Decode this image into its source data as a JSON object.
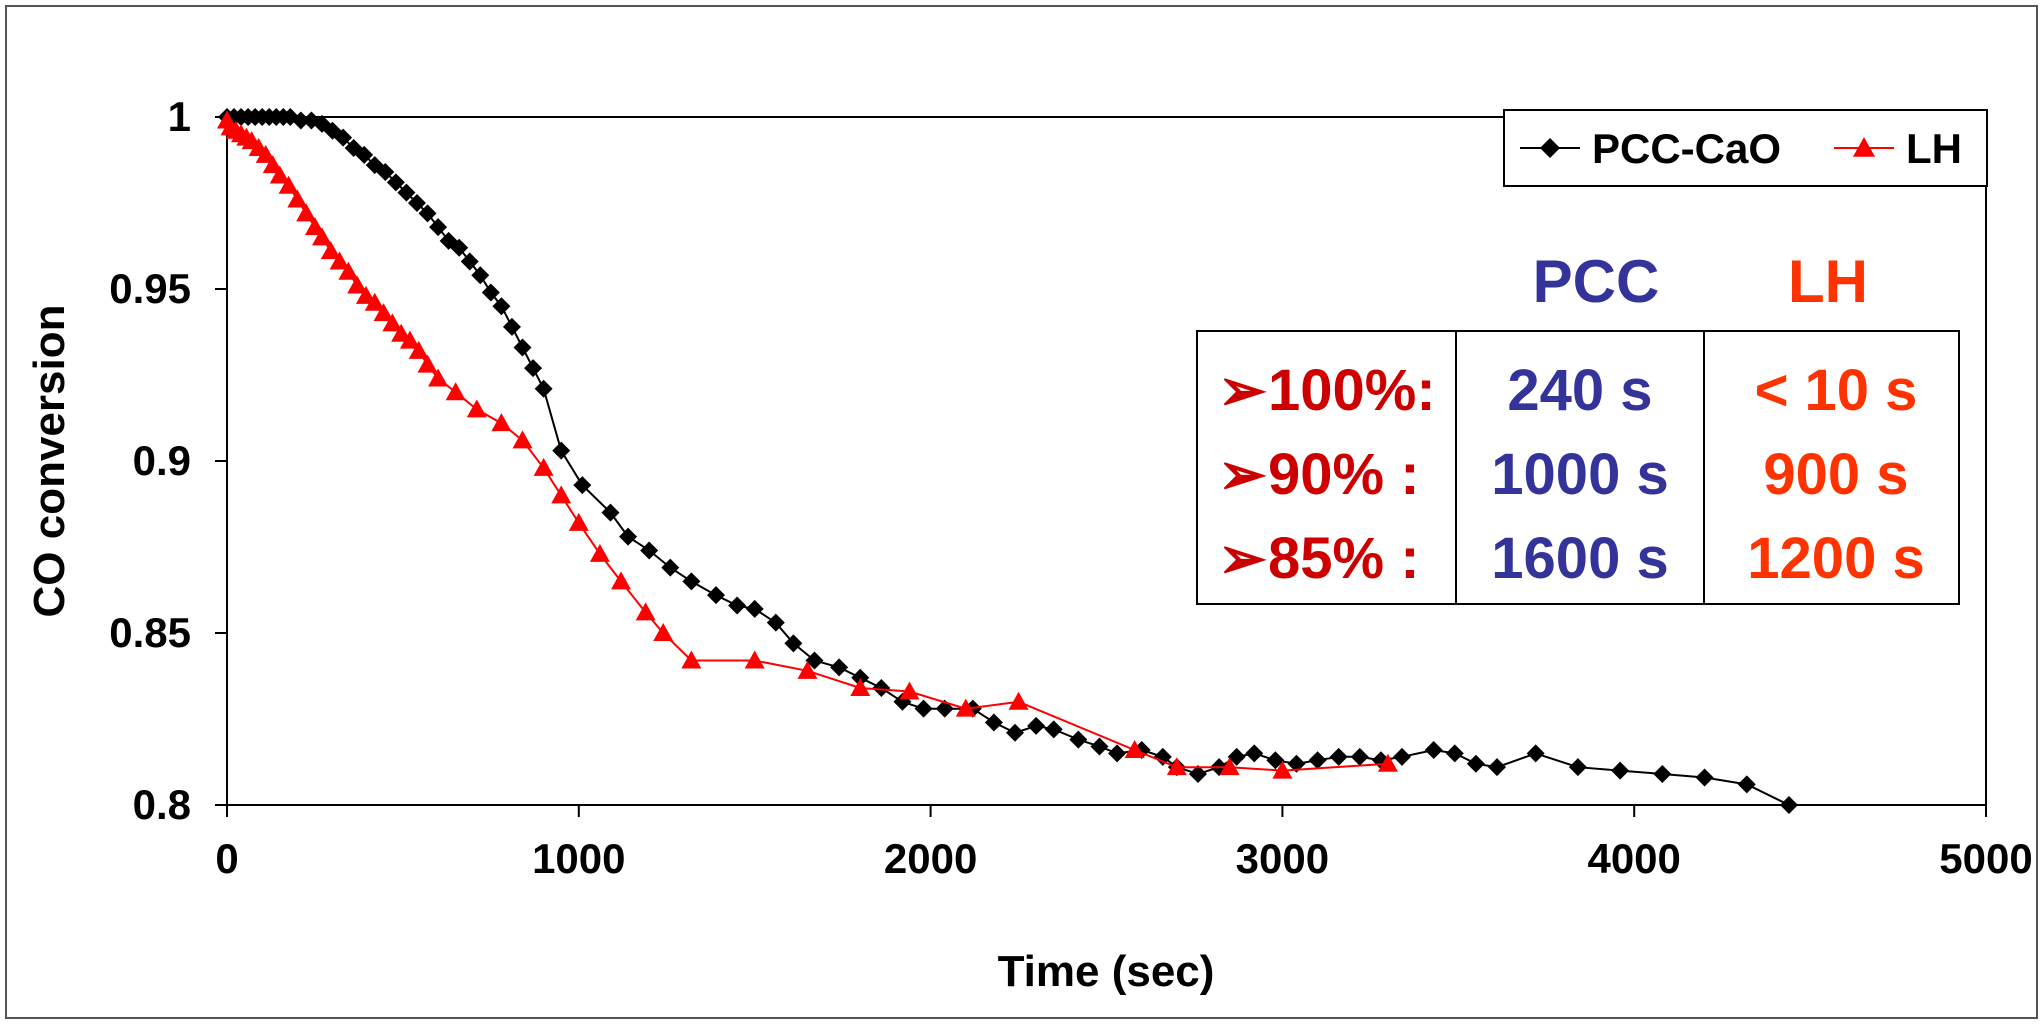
{
  "chart_data": {
    "type": "line",
    "title": "",
    "xlabel": "Time (sec)",
    "ylabel": "CO conversion",
    "xlim": [
      0,
      5000
    ],
    "ylim": [
      0.8,
      1.0
    ],
    "x_ticks": [
      "0",
      "1000",
      "2000",
      "3000",
      "4000",
      "5000"
    ],
    "x_tick_values": [
      0,
      1000,
      2000,
      3000,
      4000,
      5000
    ],
    "y_ticks": [
      "1",
      "0.95",
      "0.9",
      "0.85",
      "0.8"
    ],
    "y_tick_values": [
      1.0,
      0.95,
      0.9,
      0.85,
      0.8
    ],
    "grid": false,
    "legend": {
      "placement": "top-right",
      "entries": [
        "PCC-CaO",
        "LH"
      ]
    },
    "series": [
      {
        "name": "PCC-CaO",
        "color": "#000000",
        "marker": "diamond",
        "points": [
          [
            0,
            1.0
          ],
          [
            20,
            1.0
          ],
          [
            40,
            1.0
          ],
          [
            60,
            1.0
          ],
          [
            80,
            1.0
          ],
          [
            100,
            1.0
          ],
          [
            120,
            1.0
          ],
          [
            140,
            1.0
          ],
          [
            160,
            1.0
          ],
          [
            180,
            1.0
          ],
          [
            210,
            0.999
          ],
          [
            240,
            0.999
          ],
          [
            270,
            0.998
          ],
          [
            300,
            0.996
          ],
          [
            330,
            0.994
          ],
          [
            360,
            0.991
          ],
          [
            390,
            0.989
          ],
          [
            420,
            0.986
          ],
          [
            450,
            0.984
          ],
          [
            480,
            0.981
          ],
          [
            510,
            0.978
          ],
          [
            540,
            0.975
          ],
          [
            570,
            0.972
          ],
          [
            600,
            0.968
          ],
          [
            630,
            0.964
          ],
          [
            660,
            0.962
          ],
          [
            690,
            0.958
          ],
          [
            720,
            0.954
          ],
          [
            750,
            0.949
          ],
          [
            780,
            0.945
          ],
          [
            810,
            0.939
          ],
          [
            840,
            0.933
          ],
          [
            870,
            0.927
          ],
          [
            900,
            0.921
          ],
          [
            950,
            0.903
          ],
          [
            1010,
            0.893
          ],
          [
            1090,
            0.885
          ],
          [
            1140,
            0.878
          ],
          [
            1200,
            0.874
          ],
          [
            1260,
            0.869
          ],
          [
            1320,
            0.865
          ],
          [
            1390,
            0.861
          ],
          [
            1450,
            0.858
          ],
          [
            1500,
            0.857
          ],
          [
            1560,
            0.853
          ],
          [
            1610,
            0.847
          ],
          [
            1670,
            0.842
          ],
          [
            1740,
            0.84
          ],
          [
            1800,
            0.837
          ],
          [
            1860,
            0.834
          ],
          [
            1920,
            0.83
          ],
          [
            1980,
            0.828
          ],
          [
            2040,
            0.828
          ],
          [
            2120,
            0.828
          ],
          [
            2180,
            0.824
          ],
          [
            2240,
            0.821
          ],
          [
            2300,
            0.823
          ],
          [
            2350,
            0.822
          ],
          [
            2420,
            0.819
          ],
          [
            2480,
            0.817
          ],
          [
            2530,
            0.815
          ],
          [
            2600,
            0.816
          ],
          [
            2660,
            0.814
          ],
          [
            2700,
            0.811
          ],
          [
            2760,
            0.809
          ],
          [
            2820,
            0.811
          ],
          [
            2870,
            0.814
          ],
          [
            2920,
            0.815
          ],
          [
            2980,
            0.813
          ],
          [
            3040,
            0.812
          ],
          [
            3100,
            0.813
          ],
          [
            3160,
            0.814
          ],
          [
            3220,
            0.814
          ],
          [
            3280,
            0.813
          ],
          [
            3340,
            0.814
          ],
          [
            3430,
            0.816
          ],
          [
            3490,
            0.815
          ],
          [
            3550,
            0.812
          ],
          [
            3610,
            0.811
          ],
          [
            3720,
            0.815
          ],
          [
            3840,
            0.811
          ],
          [
            3960,
            0.81
          ],
          [
            4080,
            0.809
          ],
          [
            4200,
            0.808
          ],
          [
            4320,
            0.806
          ],
          [
            4440,
            0.8
          ]
        ]
      },
      {
        "name": "LH",
        "color": "#ff0000",
        "marker": "triangle",
        "points": [
          [
            0,
            0.999
          ],
          [
            10,
            0.997
          ],
          [
            25,
            0.996
          ],
          [
            40,
            0.995
          ],
          [
            55,
            0.994
          ],
          [
            70,
            0.993
          ],
          [
            90,
            0.991
          ],
          [
            110,
            0.989
          ],
          [
            130,
            0.986
          ],
          [
            150,
            0.983
          ],
          [
            175,
            0.98
          ],
          [
            200,
            0.976
          ],
          [
            225,
            0.972
          ],
          [
            250,
            0.968
          ],
          [
            270,
            0.965
          ],
          [
            295,
            0.961
          ],
          [
            320,
            0.958
          ],
          [
            345,
            0.955
          ],
          [
            370,
            0.951
          ],
          [
            395,
            0.948
          ],
          [
            420,
            0.946
          ],
          [
            445,
            0.943
          ],
          [
            470,
            0.94
          ],
          [
            495,
            0.937
          ],
          [
            520,
            0.935
          ],
          [
            545,
            0.932
          ],
          [
            570,
            0.928
          ],
          [
            600,
            0.924
          ],
          [
            650,
            0.92
          ],
          [
            710,
            0.915
          ],
          [
            780,
            0.911
          ],
          [
            840,
            0.906
          ],
          [
            900,
            0.898
          ],
          [
            950,
            0.89
          ],
          [
            1000,
            0.882
          ],
          [
            1060,
            0.873
          ],
          [
            1120,
            0.865
          ],
          [
            1190,
            0.856
          ],
          [
            1240,
            0.85
          ],
          [
            1320,
            0.842
          ],
          [
            1500,
            0.842
          ],
          [
            1650,
            0.839
          ],
          [
            1800,
            0.834
          ],
          [
            1940,
            0.833
          ],
          [
            2100,
            0.828
          ],
          [
            2250,
            0.83
          ],
          [
            2580,
            0.816
          ],
          [
            2700,
            0.811
          ],
          [
            2850,
            0.811
          ],
          [
            3000,
            0.81
          ],
          [
            3300,
            0.812
          ]
        ]
      }
    ],
    "annotation_table": {
      "headers": [
        {
          "text": "PCC",
          "color": "#333399"
        },
        {
          "text": "LH",
          "color": "#ff3300"
        }
      ],
      "rows": [
        {
          "label": "100%:",
          "pcc": "240 s",
          "lh": "< 10 s"
        },
        {
          "label": " 90% :",
          "pcc": "1000 s",
          "lh": "900 s"
        },
        {
          "label": " 85% :",
          "pcc": "1600 s",
          "lh": "1200 s"
        }
      ],
      "bullet_glyph": "➢",
      "label_color": "#cc0000",
      "pcc_color": "#333399",
      "lh_color": "#ff3300"
    }
  }
}
